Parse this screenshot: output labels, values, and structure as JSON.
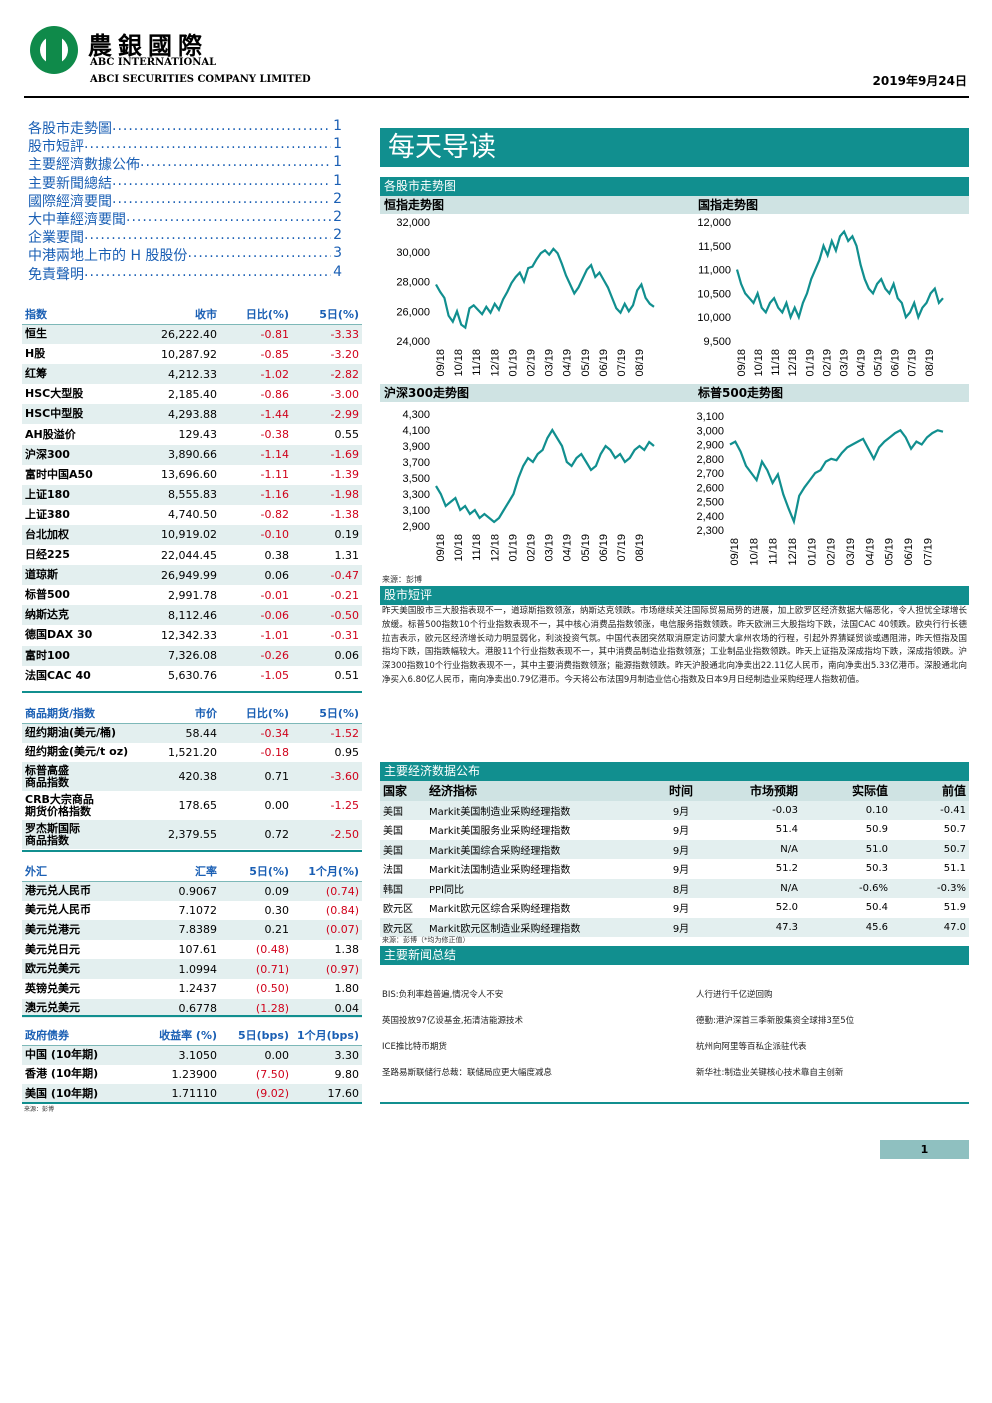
{
  "header": {
    "brand_cn": "農銀國際",
    "brand_en_line1": "ABC INTERNATIONAL",
    "brand_en_line2": "ABCI SECURITIES COMPANY LIMITED",
    "date": "2019年9月24日"
  },
  "toc": [
    {
      "label": "各股市走勢圖",
      "page": "1"
    },
    {
      "label": "股市短評",
      "page": "1"
    },
    {
      "label": "主要經濟數據公佈",
      "page": "1"
    },
    {
      "label": "主要新聞總結",
      "page": "1"
    },
    {
      "label": "國際經濟要聞",
      "page": "2"
    },
    {
      "label": "大中華經濟要聞",
      "page": "2"
    },
    {
      "label": "企業要聞",
      "page": "2"
    },
    {
      "label": "中港兩地上市的 H 股股份",
      "page": "3"
    },
    {
      "label": "免責聲明",
      "page": "4"
    }
  ],
  "indices": {
    "headers": [
      "指数",
      "收市",
      "日比(%)",
      "5日(%)"
    ],
    "rows": [
      [
        "恒生",
        "26,222.40",
        "-0.81",
        "-3.33"
      ],
      [
        "H股",
        "10,287.92",
        "-0.85",
        "-3.20"
      ],
      [
        "红筹",
        "4,212.33",
        "-1.02",
        "-2.82"
      ],
      [
        "HSC大型股",
        "2,185.40",
        "-0.86",
        "-3.00"
      ],
      [
        "HSC中型股",
        "4,293.88",
        "-1.44",
        "-2.99"
      ],
      [
        "AH股溢价",
        "129.43",
        "-0.38",
        "0.55"
      ],
      [
        "沪深300",
        "3,890.66",
        "-1.14",
        "-1.69"
      ],
      [
        "富时中国A50",
        "13,696.60",
        "-1.11",
        "-1.39"
      ],
      [
        "上证180",
        "8,555.83",
        "-1.16",
        "-1.98"
      ],
      [
        "上证380",
        "4,740.50",
        "-0.82",
        "-1.38"
      ],
      [
        "台北加权",
        "10,919.02",
        "-0.10",
        "0.19"
      ],
      [
        "日经225",
        "22,044.45",
        "0.38",
        "1.31"
      ],
      [
        "道琼斯",
        "26,949.99",
        "0.06",
        "-0.47"
      ],
      [
        "标普500",
        "2,991.78",
        "-0.01",
        "-0.21"
      ],
      [
        "纳斯达克",
        "8,112.46",
        "-0.06",
        "-0.50"
      ],
      [
        "德国DAX 30",
        "12,342.33",
        "-1.01",
        "-0.31"
      ],
      [
        "富时100",
        "7,326.08",
        "-0.26",
        "0.06"
      ],
      [
        "法国CAC 40",
        "5,630.76",
        "-1.05",
        "0.51"
      ]
    ]
  },
  "commodities": {
    "headers": [
      "商品期货/指数",
      "市价",
      "日比(%)",
      "5日(%)"
    ],
    "rows": [
      [
        "纽约期油(美元/桶)",
        "58.44",
        "-0.34",
        "-1.52"
      ],
      [
        "纽约期金(美元/t oz)",
        "1,521.20",
        "-0.18",
        "0.95"
      ],
      [
        "标普高盛\n商品指数",
        "420.38",
        "0.71",
        "-3.60"
      ],
      [
        "CRB大宗商品\n期货价格指数",
        "178.65",
        "0.00",
        "-1.25"
      ],
      [
        "罗杰斯国际\n商品指数",
        "2,379.55",
        "0.72",
        "-2.50"
      ]
    ]
  },
  "fx": {
    "headers": [
      "外汇",
      "汇率",
      "5日(%)",
      "1个月(%)"
    ],
    "rows": [
      [
        "港元兑人民币",
        "0.9067",
        "0.09",
        "(0.74)"
      ],
      [
        "美元兑人民币",
        "7.1072",
        "0.30",
        "(0.84)"
      ],
      [
        "美元兑港元",
        "7.8389",
        "0.21",
        "(0.07)"
      ],
      [
        "美元兑日元",
        "107.61",
        "(0.48)",
        "1.38"
      ],
      [
        "欧元兑美元",
        "1.0994",
        "(0.71)",
        "(0.97)"
      ],
      [
        "英镑兑美元",
        "1.2437",
        "(0.50)",
        "1.80"
      ],
      [
        "澳元兑美元",
        "0.6778",
        "(1.28)",
        "0.04"
      ]
    ]
  },
  "bonds": {
    "headers": [
      "政府债券",
      "收益率 (%)",
      "5日(bps)",
      "1个月(bps)"
    ],
    "rows": [
      [
        "中国 (10年期)",
        "3.1050",
        "0.00",
        "3.30"
      ],
      [
        "香港 (10年期)",
        "1.23900",
        "(7.50)",
        "9.80"
      ],
      [
        "美国 (10年期)",
        "1.71110",
        "(9.02)",
        "17.60"
      ]
    ],
    "source": "来源：彭博"
  },
  "main_title": "每天导读",
  "charts_section": "各股市走势图",
  "chart_data": [
    {
      "type": "line",
      "title": "恒指走势图",
      "ylim": [
        24000,
        32000
      ],
      "yticks": [
        "24,000",
        "26,000",
        "28,000",
        "30,000",
        "32,000"
      ],
      "xticks": [
        "09/18",
        "10/18",
        "11/18",
        "12/18",
        "01/19",
        "02/19",
        "03/19",
        "04/19",
        "05/19",
        "06/19",
        "07/19",
        "08/19"
      ],
      "values": [
        27800,
        27300,
        26900,
        25700,
        25300,
        26000,
        25100,
        24900,
        26200,
        26400,
        26100,
        25800,
        26300,
        25900,
        26500,
        26100,
        26800,
        27300,
        27900,
        28300,
        28600,
        28000,
        28900,
        29000,
        29500,
        29900,
        30100,
        29800,
        30200,
        29900,
        29200,
        28400,
        27800,
        27200,
        27600,
        28200,
        28800,
        29100,
        28300,
        28600,
        28100,
        27600,
        26900,
        26200,
        25900,
        26500,
        26000,
        26400,
        27400,
        27800,
        26900,
        26500,
        26300
      ]
    },
    {
      "type": "line",
      "title": "国指走势图",
      "ylim": [
        9500,
        12000
      ],
      "yticks": [
        "9,500",
        "10,000",
        "10,500",
        "11,000",
        "11,500",
        "12,000"
      ],
      "xticks": [
        "09/18",
        "10/18",
        "11/18",
        "12/18",
        "01/19",
        "02/19",
        "03/19",
        "04/19",
        "05/19",
        "06/19",
        "07/19",
        "08/19"
      ],
      "values": [
        11000,
        10700,
        10500,
        10400,
        10300,
        10500,
        10200,
        10100,
        10300,
        10400,
        10200,
        10100,
        10300,
        10000,
        10200,
        10000,
        10300,
        10500,
        10800,
        11000,
        11200,
        11500,
        11300,
        11600,
        11400,
        11700,
        11800,
        11600,
        11700,
        11500,
        11100,
        10800,
        10600,
        10500,
        10700,
        10800,
        10600,
        10500,
        10700,
        10400,
        10300,
        10000,
        10100,
        10300,
        10000,
        10200,
        10300,
        10500,
        10600,
        10300,
        10400
      ]
    },
    {
      "type": "line",
      "title": "沪深300走势图",
      "ylim": [
        2900,
        4300
      ],
      "yticks": [
        "2,900",
        "3,100",
        "3,300",
        "3,500",
        "3,700",
        "3,900",
        "4,100",
        "4,300"
      ],
      "xticks": [
        "09/18",
        "10/18",
        "11/18",
        "12/18",
        "01/19",
        "02/19",
        "03/19",
        "04/19",
        "05/19",
        "06/19",
        "07/19",
        "08/19"
      ],
      "values": [
        3400,
        3300,
        3150,
        3200,
        3250,
        3100,
        3150,
        3050,
        3100,
        3000,
        3050,
        3000,
        2950,
        3000,
        3100,
        3200,
        3300,
        3500,
        3650,
        3750,
        3700,
        3800,
        3850,
        4000,
        4100,
        4000,
        3900,
        3700,
        3650,
        3750,
        3800,
        3700,
        3600,
        3650,
        3800,
        3900,
        3850,
        3750,
        3800,
        3700,
        3750,
        3850,
        3900,
        3850,
        3950,
        3900
      ]
    },
    {
      "type": "line",
      "title": "标普500走势图",
      "ylim": [
        2300,
        3100
      ],
      "yticks": [
        "2,300",
        "2,400",
        "2,500",
        "2,600",
        "2,700",
        "2,800",
        "2,900",
        "3,000",
        "3,100"
      ],
      "xticks": [
        "09/18",
        "10/18",
        "11/18",
        "12/18",
        "01/19",
        "02/19",
        "03/19",
        "04/19",
        "05/19",
        "06/19",
        "07/19"
      ],
      "values": [
        2900,
        2920,
        2850,
        2750,
        2700,
        2650,
        2780,
        2720,
        2630,
        2690,
        2550,
        2450,
        2360,
        2540,
        2600,
        2650,
        2700,
        2720,
        2780,
        2800,
        2790,
        2840,
        2880,
        2900,
        2920,
        2940,
        2870,
        2800,
        2880,
        2920,
        2950,
        2980,
        3000,
        2950,
        2870,
        2920,
        2900,
        2950,
        2980,
        3000,
        2990
      ]
    }
  ],
  "chart_source": "来源：彭博",
  "commentary": {
    "heading": "股市短评",
    "text": "昨天美国股市三大股指表现不一，道琼斯指数领涨，纳斯达克领跌。市场继续关注国际贸易局势的进展，加上欧罗区经济数据大幅恶化，令人担忧全球增长放缓。标普500指数10个行业指数表现不一，其中核心消费品指数领涨，电信服务指数领跌。昨天欧洲三大股指均下跌，法国CAC 40领跌。欧央行行长德拉吉表示，欧元区经济增长动力明显弱化，利淡投资气氛。中国代表团突然取消原定访问蒙大拿州农场的行程，引起外界猜疑贸谈或遇阻滞，昨天恒指及国指均下跌，国指跌幅较大。港股11个行业指数表现不一，其中消费品制造业指数领涨；工业制品业指数领跌。昨天上证指及深成指均下跌，深成指领跌。沪深300指数10个行业指数表现不一，其中主要消费指数领涨；能源指数领跌。昨天沪股通北向净卖出22.11亿人民币，南向净卖出5.33亿港币。深股通北向净买入6.80亿人民币，南向净卖出0.79亿港币。今天将公布法国9月制造业信心指数及日本9月日经制造业采购经理人指数初值。"
  },
  "economic_data": {
    "heading": "主要经济数据公布",
    "headers": [
      "国家",
      "经济指标",
      "时间",
      "市场预期",
      "实际值",
      "前值"
    ],
    "rows": [
      [
        "美国",
        "Markit美国制造业采购经理指数",
        "9月",
        "-0.03",
        "0.10",
        "-0.41"
      ],
      [
        "美国",
        "Markit美国服务业采购经理指数",
        "9月",
        "51.4",
        "50.9",
        "50.7"
      ],
      [
        "美国",
        "Markit美国综合采购经理指数",
        "9月",
        "N/A",
        "51.0",
        "50.7"
      ],
      [
        "法国",
        "Markit法国制造业采购经理指数",
        "9月",
        "51.2",
        "50.3",
        "51.1"
      ],
      [
        "韩国",
        "PPI同比",
        "8月",
        "N/A",
        "-0.6%",
        "-0.3%"
      ],
      [
        "欧元区",
        "Markit欧元区综合采购经理指数",
        "9月",
        "52.0",
        "50.4",
        "51.9"
      ],
      [
        "欧元区",
        "Markit欧元区制造业采购经理指数",
        "9月",
        "47.3",
        "45.6",
        "47.0"
      ]
    ],
    "source": "来源：彭博（*均为修正值）"
  },
  "news": {
    "heading": "主要新闻总结",
    "left": [
      "BIS:负利率趋普遍,情况令人不安",
      "英国投放97亿设基金,拓清洁能源技术",
      "ICE推比特币期货",
      "圣路易斯联储行总裁：联储局应更大幅度减息"
    ],
    "right": [
      "人行进行千亿逆回购",
      "德勤:港沪深首三季新股集资全球排3至5位",
      "杭州向阿里等百私企派驻代表",
      "新华社:制造业关键核心技术靠自主创新"
    ]
  },
  "page_number": "1",
  "colors": {
    "teal": "#118f8f",
    "light_teal": "#cfe3e3",
    "negative": "#d0021b",
    "link": "#1a5fb4",
    "logo_green": "#0f8a4a"
  }
}
